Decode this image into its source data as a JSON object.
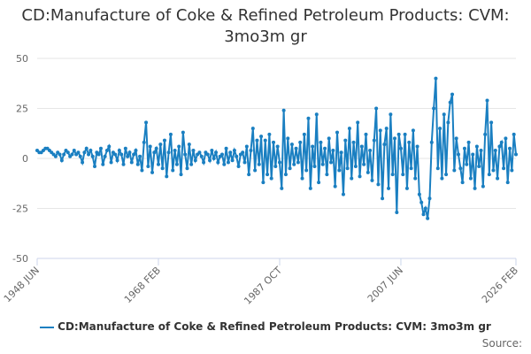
{
  "chart_data": {
    "type": "line",
    "title": "CD:Manufacture of Coke & Refined Petroleum Products: CVM: 3mo3m gr",
    "source": "Source:",
    "categories": [
      "1948 JUN",
      null,
      null,
      null,
      null,
      null,
      null,
      null,
      null,
      null,
      null,
      null,
      null,
      null,
      null,
      null,
      null,
      null,
      null,
      null,
      null,
      null,
      null,
      null,
      null,
      null,
      null,
      null,
      null,
      null,
      null,
      null,
      null,
      null,
      null,
      null,
      null,
      null,
      null,
      null,
      null,
      null,
      null,
      null,
      null,
      null,
      null,
      null,
      null,
      null,
      null,
      null,
      null,
      null,
      null,
      null,
      null,
      null,
      null,
      "1968 FEB",
      null,
      null,
      null,
      null,
      null,
      null,
      null,
      null,
      null,
      null,
      null,
      null,
      null,
      null,
      null,
      null,
      null,
      null,
      null,
      null,
      null,
      null,
      null,
      null,
      null,
      null,
      null,
      null,
      null,
      null,
      null,
      null,
      null,
      null,
      null,
      null,
      null,
      null,
      null,
      null,
      null,
      null,
      null,
      null,
      null,
      null,
      null,
      null,
      null,
      null,
      null,
      null,
      null,
      null,
      null,
      null,
      null,
      null,
      "1987 OCT",
      null,
      null,
      null,
      null,
      null,
      null,
      null,
      null,
      null,
      null,
      null,
      null,
      null,
      null,
      null,
      null,
      null,
      null,
      null,
      null,
      null,
      null,
      null,
      null,
      null,
      null,
      null,
      null,
      null,
      null,
      null,
      null,
      null,
      null,
      null,
      null,
      null,
      null,
      null,
      null,
      null,
      null,
      null,
      null,
      null,
      null,
      null,
      null,
      null,
      null,
      null,
      null,
      null,
      null,
      null,
      null,
      null,
      null,
      "2007 JUN",
      null,
      null,
      null,
      null,
      null,
      null,
      null,
      null,
      null,
      null,
      null,
      null,
      null,
      null,
      null,
      null,
      null,
      null,
      null,
      null,
      null,
      null,
      null,
      null,
      null,
      null,
      null,
      null,
      null,
      null,
      null,
      null,
      null,
      null,
      null,
      null,
      null,
      null,
      null,
      null,
      null,
      null,
      null,
      null,
      null,
      null,
      null,
      null,
      null,
      null,
      null,
      null,
      null,
      null,
      null,
      "2026 FEB"
    ],
    "series": [
      {
        "name": "CD:Manufacture of Coke & Refined Petroleum Products: CVM: 3mo3m gr",
        "color": "#1a7fc1",
        "values": [
          4,
          3,
          3,
          4,
          5,
          5,
          4,
          3,
          2,
          1,
          3,
          2,
          -1,
          2,
          4,
          3,
          1,
          2,
          4,
          2,
          3,
          1,
          -2,
          3,
          5,
          2,
          4,
          1,
          -4,
          3,
          2,
          5,
          -3,
          1,
          4,
          6,
          -2,
          3,
          2,
          -1,
          4,
          2,
          -3,
          5,
          1,
          3,
          -2,
          2,
          4,
          -3,
          1,
          -6,
          8,
          18,
          -4,
          6,
          -7,
          3,
          5,
          -3,
          7,
          -5,
          9,
          -9,
          3,
          12,
          -6,
          4,
          -3,
          6,
          -8,
          13,
          2,
          -5,
          7,
          -3,
          4,
          -1,
          2,
          3,
          1,
          -2,
          3,
          2,
          -1,
          4,
          0,
          3,
          -2,
          1,
          2,
          -3,
          5,
          -2,
          3,
          -1,
          4,
          1,
          -4,
          2,
          3,
          -2,
          6,
          -8,
          4,
          15,
          -6,
          9,
          -3,
          11,
          -12,
          9,
          -8,
          12,
          -10,
          8,
          -4,
          6,
          -2,
          -15,
          24,
          -8,
          10,
          -5,
          7,
          -3,
          5,
          -2,
          8,
          -10,
          12,
          -6,
          20,
          -15,
          6,
          -4,
          22,
          -12,
          8,
          -3,
          5,
          -8,
          10,
          -2,
          4,
          -14,
          13,
          -6,
          3,
          -18,
          9,
          -5,
          15,
          -10,
          8,
          -4,
          18,
          -9,
          6,
          -3,
          12,
          -7,
          4,
          -11,
          9,
          25,
          -13,
          14,
          -20,
          7,
          15,
          -15,
          22,
          -8,
          10,
          -27,
          12,
          5,
          -8,
          12,
          -15,
          8,
          -5,
          14,
          -10,
          6,
          -18,
          -22,
          -28,
          -25,
          -30,
          -20,
          8,
          25,
          40,
          -5,
          15,
          -10,
          22,
          -8,
          18,
          28,
          32,
          -6,
          10,
          2,
          -5,
          -12,
          5,
          -3,
          8,
          -10,
          2,
          -15,
          6,
          -4,
          4,
          -14,
          12,
          29,
          -8,
          18,
          -6,
          4,
          -10,
          6,
          8,
          -5,
          10,
          -12,
          5,
          -6,
          12,
          2
        ]
      }
    ],
    "ylim": [
      -50,
      50
    ],
    "yticks": [
      50,
      25,
      0,
      -25,
      -50
    ],
    "grid": true,
    "legend": "bottom"
  }
}
